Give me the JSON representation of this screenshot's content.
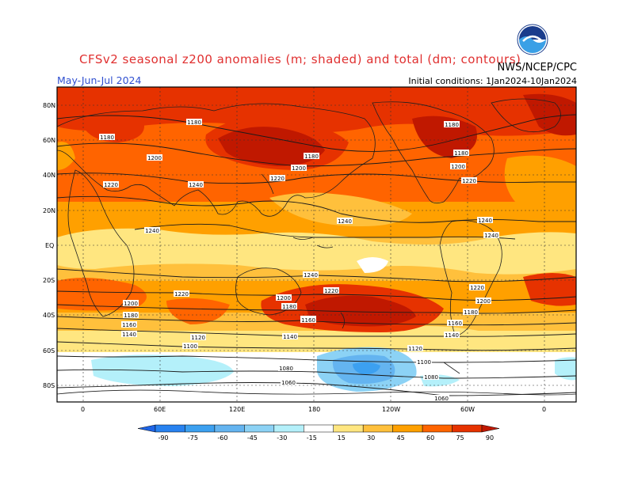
{
  "header": {
    "title": "CFSv2 seasonal z200 anomalies (m; shaded) and total (dm; contours)",
    "org": "NWS/NCEP/CPC",
    "period": "May-Jun-Jul 2024",
    "init": "Initial conditions: 1Jan2024-10Jan2024",
    "logo_text": "NOAA"
  },
  "map": {
    "lat_labels": [
      "80N",
      "60N",
      "40N",
      "20N",
      "EQ",
      "20S",
      "40S",
      "60S",
      "80S"
    ],
    "lon_labels": [
      "0",
      "60E",
      "120E",
      "180",
      "120W",
      "60W",
      "0"
    ],
    "contour_labels": [
      {
        "t": "1180"
      },
      {
        "t": "1180"
      },
      {
        "t": "1180"
      },
      {
        "t": "1180"
      },
      {
        "t": "1180"
      },
      {
        "t": "1200"
      },
      {
        "t": "1200"
      },
      {
        "t": "1200"
      },
      {
        "t": "1220"
      },
      {
        "t": "1220"
      },
      {
        "t": "1220"
      },
      {
        "t": "1240"
      },
      {
        "t": "1240"
      },
      {
        "t": "1240"
      },
      {
        "t": "1240"
      },
      {
        "t": "1240"
      },
      {
        "t": "1240"
      },
      {
        "t": "1220"
      },
      {
        "t": "1220"
      },
      {
        "t": "1220"
      },
      {
        "t": "1200"
      },
      {
        "t": "1200"
      },
      {
        "t": "1200"
      },
      {
        "t": "1180"
      },
      {
        "t": "1180"
      },
      {
        "t": "1180"
      },
      {
        "t": "1180"
      },
      {
        "t": "1160"
      },
      {
        "t": "1160"
      },
      {
        "t": "1160"
      },
      {
        "t": "1140"
      },
      {
        "t": "1140"
      },
      {
        "t": "1140"
      },
      {
        "t": "1120"
      },
      {
        "t": "1120"
      },
      {
        "t": "1100"
      },
      {
        "t": "1100"
      },
      {
        "t": "1080"
      },
      {
        "t": "1080"
      },
      {
        "t": "1060"
      },
      {
        "t": "1060"
      }
    ]
  },
  "legend": {
    "ticks": [
      "-90",
      "-75",
      "-60",
      "-45",
      "-30",
      "-15",
      "15",
      "30",
      "45",
      "60",
      "75",
      "90"
    ],
    "colors": [
      "#1e64e6",
      "#2882f0",
      "#3ca0f0",
      "#64b4f0",
      "#8cd2f5",
      "#b4f0fa",
      "#ffffff",
      "#ffe680",
      "#ffc03c",
      "#ffa000",
      "#ff6400",
      "#e63200",
      "#c01800"
    ]
  }
}
